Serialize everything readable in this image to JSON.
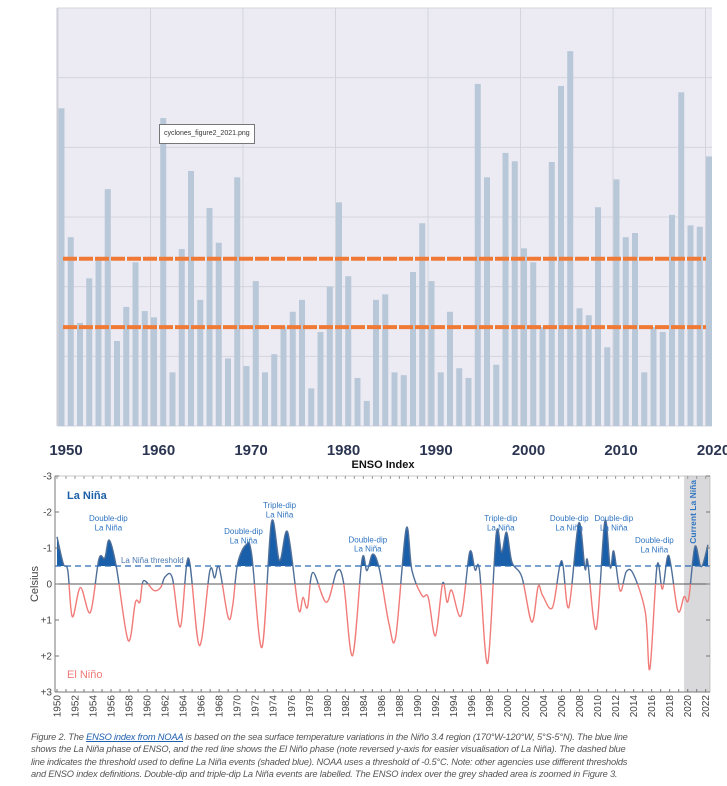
{
  "chart_data": [
    {
      "type": "bar",
      "title": "",
      "xlabel": "ENSO Index",
      "ylabel": "",
      "x_tick_labels": [
        "1950",
        "1960",
        "1970",
        "1980",
        "1990",
        "2000",
        "2010",
        "2020"
      ],
      "categories": [
        1950,
        1951,
        1952,
        1953,
        1954,
        1955,
        1956,
        1957,
        1958,
        1959,
        1960,
        1961,
        1962,
        1963,
        1964,
        1965,
        1966,
        1967,
        1968,
        1969,
        1970,
        1971,
        1972,
        1973,
        1974,
        1975,
        1976,
        1977,
        1978,
        1979,
        1980,
        1981,
        1982,
        1983,
        1984,
        1985,
        1986,
        1987,
        1988,
        1989,
        1990,
        1991,
        1992,
        1993,
        1994,
        1995,
        1996,
        1997,
        1998,
        1999,
        2000,
        2001,
        2002,
        2003,
        2004,
        2005,
        2006,
        2007,
        2008,
        2009,
        2010,
        2011,
        2012,
        2013,
        2014,
        2015,
        2016,
        2017,
        2018,
        2019,
        2020
      ],
      "values": [
        4.56,
        2.71,
        1.48,
        2.12,
        2.4,
        3.4,
        1.22,
        1.71,
        2.35,
        1.65,
        1.56,
        4.42,
        0.77,
        2.54,
        3.66,
        1.81,
        3.13,
        2.63,
        0.97,
        3.57,
        0.86,
        2.08,
        0.77,
        1.03,
        1.43,
        1.64,
        1.81,
        0.54,
        1.35,
        2.0,
        3.21,
        2.15,
        0.69,
        0.36,
        1.81,
        1.89,
        0.77,
        0.73,
        2.21,
        2.91,
        2.08,
        0.77,
        1.64,
        0.83,
        0.69,
        4.91,
        3.57,
        0.88,
        3.92,
        3.8,
        2.55,
        2.35,
        1.42,
        3.79,
        4.88,
        5.38,
        1.69,
        1.59,
        3.14,
        1.13,
        3.54,
        2.71,
        2.77,
        0.77,
        1.42,
        1.35,
        3.03,
        4.79,
        2.88,
        2.86,
        3.87
      ],
      "ylim": [
        0,
        6
      ],
      "grid": true,
      "reference_lines": [
        2.4,
        1.42
      ],
      "colors": {
        "bar": "#b8c8d8",
        "reference": "#f07a35",
        "background": "#ecebf3",
        "grid": "#d4d4dc",
        "tick": "#2b3552"
      },
      "tooltip": "cyclones_figure2_2021.png"
    },
    {
      "type": "line",
      "title": "",
      "xlabel": "",
      "ylabel": "Celsius",
      "y_reversed": true,
      "ylim": [
        -3,
        3
      ],
      "xlim": [
        1950,
        2022.5
      ],
      "y_tick_labels": [
        "-3",
        "-2",
        "-1",
        "0",
        "+1",
        "+2",
        "+3"
      ],
      "x_tick_labels": [
        "1950",
        "1952",
        "1954",
        "1956",
        "1958",
        "1960",
        "1962",
        "1964",
        "1966",
        "1968",
        "1970",
        "1972",
        "1974",
        "1976",
        "1978",
        "1980",
        "1982",
        "1984",
        "1986",
        "1988",
        "1990",
        "1992",
        "1994",
        "1996",
        "1998",
        "2000",
        "2002",
        "2004",
        "2006",
        "2008",
        "2010",
        "2012",
        "2014",
        "2016",
        "2018",
        "2020",
        "2022"
      ],
      "threshold": -0.5,
      "threshold_label": "La Niña threshold",
      "phase_labels": {
        "la_nina": "La Niña",
        "el_nino": "El Niño"
      },
      "shaded_region": {
        "from": 2019.6,
        "to": 2022.5,
        "label": "Current La Niña"
      },
      "annotations": [
        {
          "line1": "Double-dip",
          "line2": "La Niña",
          "year": 1955.7
        },
        {
          "line1": "Double-dip",
          "line2": "La Niña",
          "year": 1970.7
        },
        {
          "line1": "Triple-dip",
          "line2": "La Niña",
          "year": 1974.7
        },
        {
          "line1": "Double-dip",
          "line2": "La Niña",
          "year": 1984.5
        },
        {
          "line1": "Triple-dip",
          "line2": "La Niña",
          "year": 1999.25
        },
        {
          "line1": "Double-dip",
          "line2": "La Niña",
          "year": 2006.85
        },
        {
          "line1": "Double-dip",
          "line2": "La Niña",
          "year": 2011.8
        },
        {
          "line1": "Double-dip",
          "line2": "La Niña",
          "year": 2016.3
        }
      ],
      "series": {
        "x": [
          1950.0,
          1950.7,
          1951.2,
          1951.7,
          1952.6,
          1953.7,
          1954.65,
          1955.3,
          1955.8,
          1956.6,
          1957.9,
          1958.7,
          1959.2,
          1959.6,
          1960.75,
          1961.5,
          1962.0,
          1962.8,
          1963.7,
          1964.6,
          1965.8,
          1966.95,
          1967.5,
          1968.0,
          1969.0,
          1969.5,
          1970.05,
          1971.0,
          1971.6,
          1972.75,
          1973.8,
          1974.7,
          1975.6,
          1976.8,
          1977.3,
          1977.8,
          1978.4,
          1979.9,
          1981.05,
          1981.8,
          1982.8,
          1983.85,
          1984.4,
          1985.05,
          1985.8,
          1986.85,
          1987.6,
          1988.75,
          1989.4,
          1990.5,
          1991.2,
          1992.0,
          1992.8,
          1993.3,
          1993.8,
          1994.85,
          1995.8,
          1996.4,
          1996.9,
          1997.8,
          1998.75,
          1999.35,
          1999.9,
          2000.5,
          2001.6,
          2002.7,
          2003.4,
          2003.9,
          2005.0,
          2006.0,
          2006.8,
          2007.9,
          2008.6,
          2008.9,
          2009.85,
          2010.8,
          2011.4,
          2011.8,
          2012.5,
          2013.2,
          2014.0,
          2015.3,
          2015.8,
          2016.6,
          2017.2,
          2017.9,
          2018.9,
          2019.6,
          2020.1,
          2020.8,
          2021.5,
          2022.25
        ],
        "y": [
          -1.31,
          -0.56,
          -0.37,
          0.91,
          0.1,
          0.79,
          -0.69,
          -0.72,
          -1.22,
          -0.46,
          1.57,
          0.51,
          0.5,
          -0.09,
          0.18,
          0.1,
          -0.2,
          -0.17,
          1.19,
          -0.72,
          1.71,
          -0.35,
          -0.17,
          -0.46,
          0.93,
          0.6,
          -0.57,
          -1.09,
          -0.83,
          1.76,
          -1.71,
          -0.65,
          -1.44,
          0.69,
          0.37,
          0.65,
          -0.32,
          0.51,
          -0.35,
          -0.05,
          1.99,
          -0.67,
          -0.37,
          -0.83,
          -0.39,
          1.11,
          1.46,
          -1.53,
          -0.37,
          0.32,
          0.37,
          1.44,
          -0.02,
          0.51,
          0.17,
          0.88,
          -0.88,
          -0.39,
          -0.37,
          2.2,
          -1.39,
          -0.88,
          -1.44,
          -0.6,
          -0.19,
          1.06,
          0.07,
          0.32,
          0.65,
          -0.65,
          0.65,
          -1.69,
          -0.42,
          -0.63,
          1.25,
          -1.74,
          -0.46,
          -0.91,
          0.19,
          -0.35,
          -0.26,
          0.79,
          2.36,
          -0.51,
          0.14,
          -0.79,
          0.74,
          0.35,
          0.42,
          -1.04,
          -0.48,
          -1.09
        ]
      },
      "colors": {
        "la_nina_line": "#4f6f99",
        "el_nino_line": "#f07b78",
        "la_nina_fill": "#1a5fa9",
        "threshold": "#2a6cb8",
        "shade": "#d9d9db",
        "label_blue": "#2f74c0"
      }
    }
  ],
  "caption": {
    "prefix": "Figure 2. The ",
    "link": "ENSO index from NOAA",
    "lines": [
      " is based on the sea surface temperature variations in the Niño 3.4 region (170°W-120°W, 5°S-5°N). The blue line",
      "shows the La Niña phase of ENSO, and the red line shows the El Niño phase (note reversed y-axis for easier visualisation of La Niña). The dashed blue",
      "line indicates the threshold used to define La Niña events (shaded blue). NOAA uses a threshold of -0.5°C. Note: other agencies use different thresholds",
      "and ENSO index definitions. Double-dip and triple-dip La Niña events are labelled. The ENSO index over the grey shaded area is zoomed in Figure 3."
    ]
  }
}
